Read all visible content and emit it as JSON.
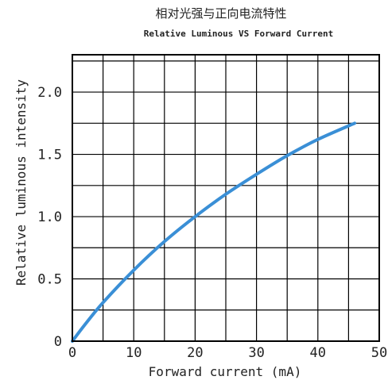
{
  "chart_data": {
    "type": "line",
    "title": "相对光强与正向电流特性",
    "subtitle": "Relative Luminous VS Forward Current",
    "xlabel": "Forward current (mA)",
    "ylabel": "Relative luminous intensity",
    "xlim": [
      0,
      50
    ],
    "ylim": [
      0,
      2.3
    ],
    "x_ticks": [
      0,
      10,
      20,
      30,
      40,
      50
    ],
    "x_tick_labels": [
      "0",
      "10",
      "20",
      "30",
      "40",
      "50"
    ],
    "y_ticks": [
      0,
      0.5,
      1.0,
      1.5,
      2.0
    ],
    "y_tick_labels": [
      "0",
      "0.5",
      "1.0",
      "1.5",
      "2.0"
    ],
    "grid": true,
    "series": [
      {
        "color": "#3a8fd6",
        "x": [
          0,
          2,
          5,
          10,
          15,
          20,
          25,
          30,
          35,
          40,
          46
        ],
        "y": [
          0,
          0.13,
          0.31,
          0.57,
          0.8,
          1.0,
          1.18,
          1.34,
          1.49,
          1.62,
          1.75
        ]
      }
    ]
  }
}
